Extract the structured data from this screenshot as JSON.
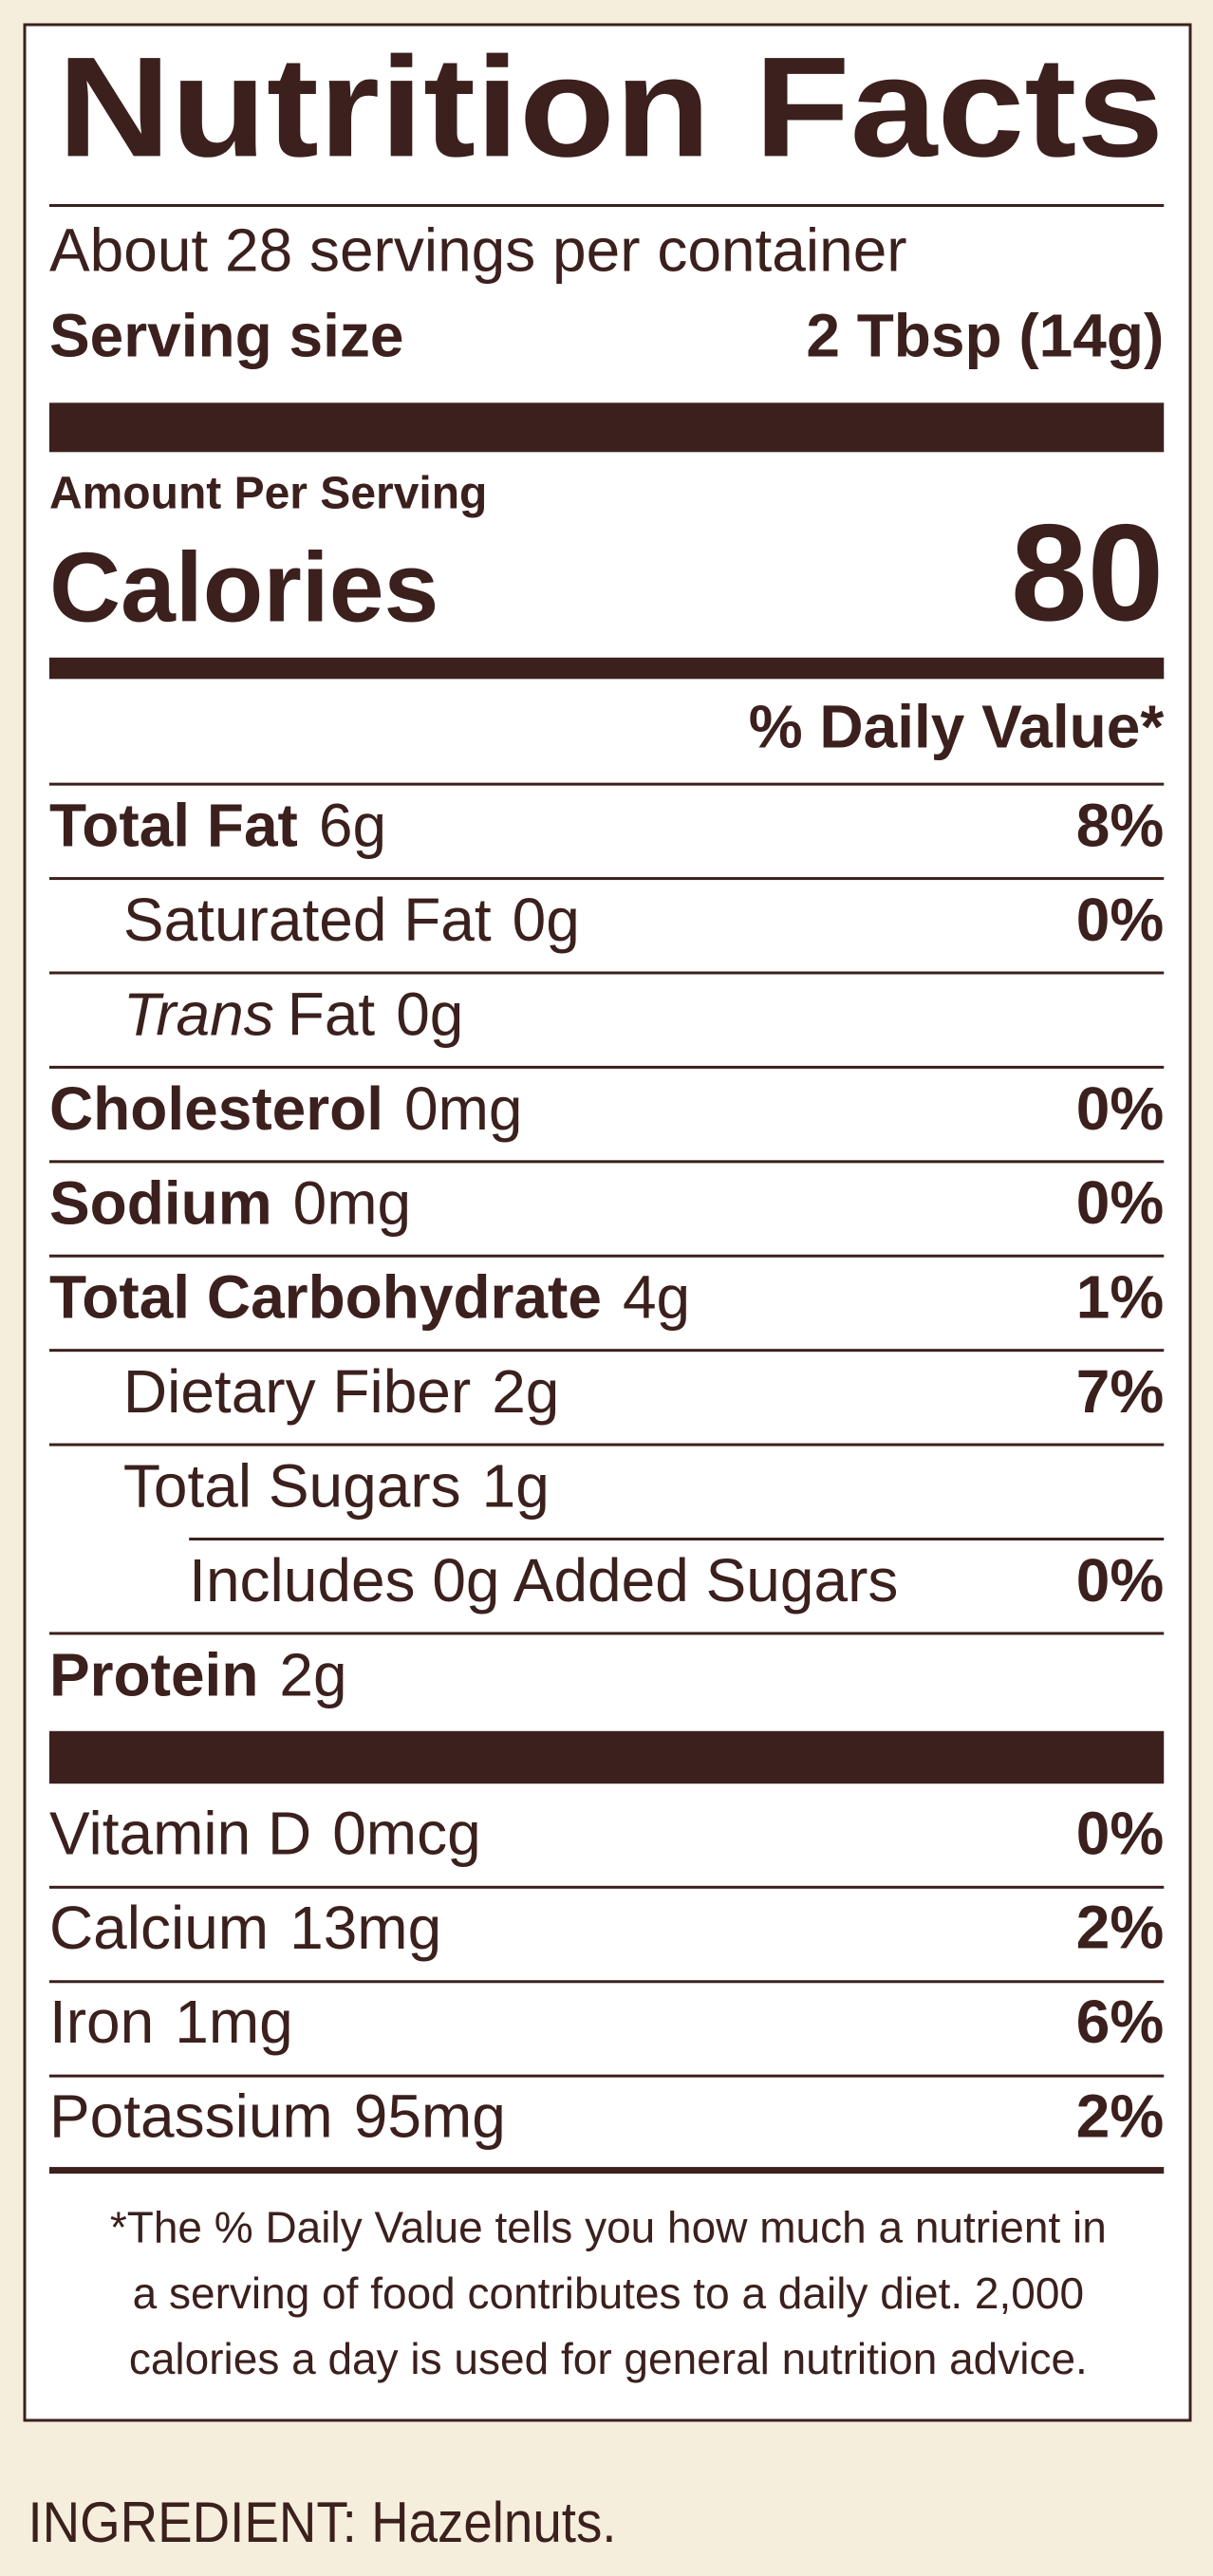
{
  "header": {
    "title": "Nutrition Facts",
    "servings": "About 28 servings per container",
    "serving_size_label": "Serving size",
    "serving_size_value": "2 Tbsp (14g)"
  },
  "calories": {
    "amount_label": "Amount Per Serving",
    "label": "Calories",
    "value": "80"
  },
  "daily_value_header": "% Daily Value*",
  "nutrients": [
    {
      "name": "Total Fat",
      "amount": "6g",
      "dv": "8%",
      "level": 0
    },
    {
      "name": "Saturated Fat",
      "amount": "0g",
      "dv": "0%",
      "level": 1
    },
    {
      "name_prefix": "Trans",
      "name": "Fat",
      "amount": "0g",
      "level": 1
    },
    {
      "name": "Cholesterol",
      "amount": "0mg",
      "dv": "0%",
      "level": 0
    },
    {
      "name": "Sodium",
      "amount": "0mg",
      "dv": "0%",
      "level": 0
    },
    {
      "name": "Total Carbohydrate",
      "amount": "4g",
      "dv": "1%",
      "level": 0
    },
    {
      "name": "Dietary Fiber",
      "amount": "2g",
      "dv": "7%",
      "level": 1
    },
    {
      "name": "Total Sugars",
      "amount": "1g",
      "level": 1
    },
    {
      "name": "Includes 0g Added Sugars",
      "dv": "0%",
      "level": 2
    },
    {
      "name": "Protein",
      "amount": "2g",
      "level": 0
    }
  ],
  "vitamins": [
    {
      "name": "Vitamin D",
      "amount": "0mcg",
      "dv": "0%"
    },
    {
      "name": "Calcium",
      "amount": "13mg",
      "dv": "2%"
    },
    {
      "name": "Iron",
      "amount": "1mg",
      "dv": "6%"
    },
    {
      "name": "Potassium",
      "amount": "95mg",
      "dv": "2%"
    }
  ],
  "footnote": [
    "*The % Daily Value tells you how much a nutrient in",
    "a serving of food contributes to a daily diet. 2,000",
    "calories a day is used for general nutrition advice."
  ],
  "ingredients": "INGREDIENT: Hazelnuts."
}
